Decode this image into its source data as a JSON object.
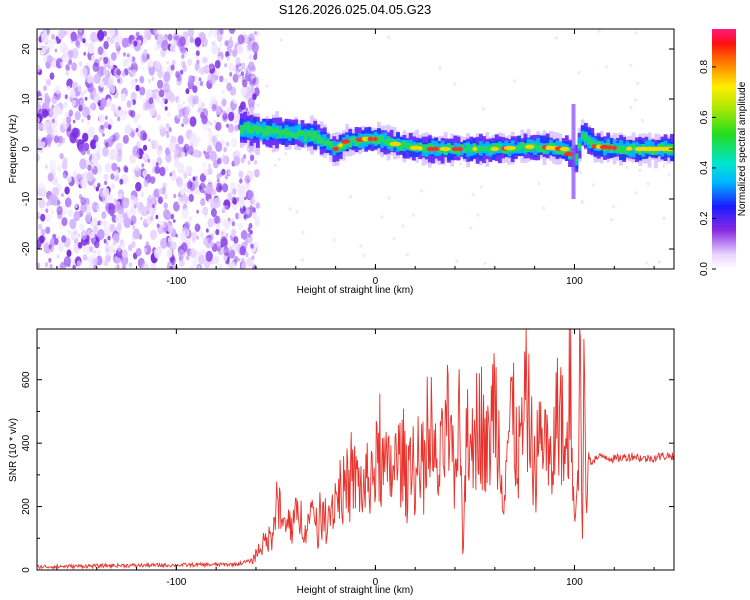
{
  "title": "S126.2026.025.04.05.G23",
  "colors": {
    "snr_line": "#e8322b",
    "axis": "#000000",
    "background": "#ffffff"
  },
  "chart_data": [
    {
      "type": "heatmap",
      "xlabel": "Height of straight line (km)",
      "ylabel": "Frequency (Hz)",
      "xlim": [
        -170,
        150
      ],
      "ylim": [
        -24,
        24
      ],
      "xticks": [
        -100,
        0,
        100
      ],
      "yticks": [
        -20,
        -10,
        0,
        10,
        20
      ],
      "colorbar": {
        "label": "Normalized spectral amplitude",
        "range": [
          0,
          0.95
        ],
        "ticks": [
          0.0,
          0.2,
          0.4,
          0.6,
          0.8
        ],
        "colormap": "rainbow (white→purple→blue→cyan→green→yellow→red→magenta)"
      },
      "features": {
        "noise_region_x": [
          -170,
          -65
        ],
        "signal_band_center_hz": [
          [
            -68,
            4
          ],
          [
            -55,
            3.5
          ],
          [
            -40,
            3
          ],
          [
            -30,
            2.5
          ],
          [
            -25,
            1
          ],
          [
            -20,
            0
          ],
          [
            -15,
            1.5
          ],
          [
            -5,
            2
          ],
          [
            0,
            2
          ],
          [
            5,
            1.5
          ],
          [
            15,
            0.5
          ],
          [
            25,
            0
          ],
          [
            40,
            0
          ],
          [
            60,
            0
          ],
          [
            80,
            0.5
          ],
          [
            95,
            0
          ],
          [
            100,
            -2
          ],
          [
            103,
            3
          ],
          [
            110,
            0.5
          ],
          [
            130,
            0
          ],
          [
            150,
            0
          ]
        ]
      }
    },
    {
      "type": "line",
      "xlabel": "Height of straight line (km)",
      "ylabel": "SNR (10 * v/v)",
      "xlim": [
        -170,
        150
      ],
      "ylim": [
        0,
        760
      ],
      "xticks": [
        -100,
        0,
        100
      ],
      "yticks": [
        0,
        200,
        400,
        600
      ],
      "series": [
        {
          "x": [
            -170,
            -150,
            -130,
            -110,
            -90,
            -70,
            -62,
            -58,
            -52,
            -50,
            -46,
            -42,
            -38,
            -34,
            -30,
            -26,
            -22,
            -18,
            -14,
            -10,
            -6,
            -2,
            2,
            6,
            10,
            14,
            16,
            18,
            20,
            24,
            28,
            32,
            36,
            40,
            42,
            44,
            46,
            48,
            52,
            56,
            60,
            64,
            68,
            72,
            76,
            80,
            84,
            88,
            92,
            96,
            98,
            100,
            102,
            103,
            104,
            105,
            106,
            107,
            108,
            110,
            115,
            120,
            125,
            130,
            135,
            140,
            145,
            150
          ],
          "y": [
            10,
            12,
            14,
            15,
            16,
            18,
            30,
            70,
            110,
            230,
            130,
            150,
            170,
            140,
            180,
            160,
            200,
            260,
            240,
            290,
            250,
            310,
            340,
            300,
            330,
            360,
            250,
            430,
            280,
            330,
            370,
            300,
            470,
            260,
            540,
            30,
            580,
            280,
            520,
            350,
            560,
            260,
            500,
            360,
            540,
            300,
            470,
            290,
            540,
            320,
            580,
            200,
            400,
            760,
            90,
            650,
            130,
            370,
            340,
            350,
            360,
            350,
            355,
            360,
            350,
            355,
            360,
            360
          ]
        }
      ]
    }
  ]
}
